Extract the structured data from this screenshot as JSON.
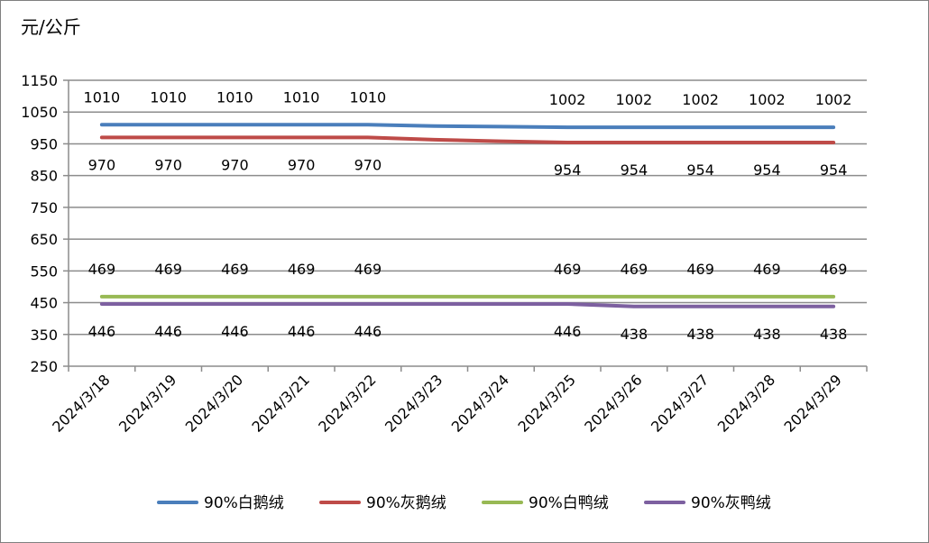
{
  "chart_data": {
    "type": "line",
    "ylabel": "元/公斤",
    "ylim": [
      250,
      1150
    ],
    "yticks": [
      250,
      350,
      450,
      550,
      650,
      750,
      850,
      950,
      1050,
      1150
    ],
    "grid": true,
    "legend_position": "bottom",
    "categories": [
      "2024/3/18",
      "2024/3/19",
      "2024/3/20",
      "2024/3/21",
      "2024/3/22",
      "2024/3/23",
      "2024/3/24",
      "2024/3/25",
      "2024/3/26",
      "2024/3/27",
      "2024/3/28",
      "2024/3/29"
    ],
    "series": [
      {
        "name": "90%白鹅绒",
        "color": "#4a7ebb",
        "values": [
          1010,
          1010,
          1010,
          1010,
          1010,
          1006,
          1004,
          1002,
          1002,
          1002,
          1002,
          1002
        ],
        "labels": [
          "1010",
          "1010",
          "1010",
          "1010",
          "1010",
          "",
          "",
          "1002",
          "1002",
          "1002",
          "1002",
          "1002"
        ],
        "label_position": "above"
      },
      {
        "name": "90%灰鹅绒",
        "color": "#be4b48",
        "values": [
          970,
          970,
          970,
          970,
          970,
          963,
          958,
          954,
          954,
          954,
          954,
          954
        ],
        "labels": [
          "970",
          "970",
          "970",
          "970",
          "970",
          "",
          "",
          "954",
          "954",
          "954",
          "954",
          "954"
        ],
        "label_position": "below"
      },
      {
        "name": "90%白鸭绒",
        "color": "#98b954",
        "values": [
          469,
          469,
          469,
          469,
          469,
          469,
          469,
          469,
          469,
          469,
          469,
          469
        ],
        "labels": [
          "469",
          "469",
          "469",
          "469",
          "469",
          "",
          "",
          "469",
          "469",
          "469",
          "469",
          "469"
        ],
        "label_position": "above"
      },
      {
        "name": "90%灰鸭绒",
        "color": "#7d60a0",
        "values": [
          446,
          446,
          446,
          446,
          446,
          446,
          446,
          446,
          438,
          438,
          438,
          438
        ],
        "labels": [
          "446",
          "446",
          "446",
          "446",
          "446",
          "",
          "",
          "446",
          "438",
          "438",
          "438",
          "438"
        ],
        "label_position": "below"
      }
    ]
  }
}
